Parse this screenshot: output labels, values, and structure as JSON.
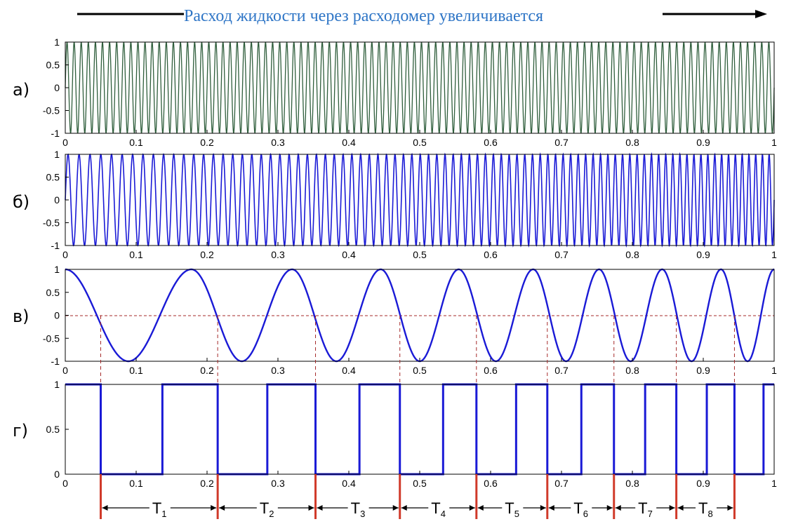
{
  "header": {
    "title": "Расход жидкости через расходомер увеличивается",
    "title_color": "#2e75c6"
  },
  "chart_data": [
    {
      "type": "line",
      "panel_label": "а)",
      "color": "#2f5e3c",
      "signal": "constant-frequency oscillation, amplitude 1",
      "cycles": 100,
      "xlim": [
        0,
        1
      ],
      "ylim": [
        -1,
        1
      ],
      "xticks": [
        "0",
        "0.1",
        "0.2",
        "0.3",
        "0.4",
        "0.5",
        "0.6",
        "0.7",
        "0.8",
        "0.9",
        "1"
      ],
      "yticks": [
        "1",
        "0.5",
        "0",
        "-0.5",
        "-1"
      ]
    },
    {
      "type": "line",
      "panel_label": "б)",
      "color": "#1a1ad6",
      "signal": "oscillation with rising frequency, amplitude 1",
      "cycles": 85,
      "xlim": [
        0,
        1
      ],
      "ylim": [
        -1,
        1
      ],
      "xticks": [
        "0",
        "0.1",
        "0.2",
        "0.3",
        "0.4",
        "0.5",
        "0.6",
        "0.7",
        "0.8",
        "0.9",
        "1"
      ],
      "yticks": [
        "1",
        "0.5",
        "0",
        "-0.5",
        "-1"
      ]
    },
    {
      "type": "line",
      "panel_label": "в)",
      "color": "#1a1ad6",
      "signal": "cosine with rising frequency",
      "peaks_x": [
        0,
        0.178,
        0.32,
        0.445,
        0.555,
        0.66,
        0.753,
        0.842,
        0.925,
        1.0
      ],
      "xlim": [
        0,
        1
      ],
      "ylim": [
        -1,
        1
      ],
      "xticks": [
        "0",
        "0.1",
        "0.2",
        "0.3",
        "0.4",
        "0.5",
        "0.6",
        "0.7",
        "0.8",
        "0.9",
        "1"
      ],
      "yticks": [
        "1",
        "0.5",
        "0",
        "-0.5",
        "-1"
      ]
    },
    {
      "type": "line",
      "panel_label": "г)",
      "color": "#1a1ad6",
      "signal": "square pulse train derived from в)",
      "falling_edges": [
        0.05,
        0.215,
        0.353,
        0.472,
        0.58,
        0.68,
        0.774,
        0.862,
        0.944
      ],
      "rising_edges": [
        0.137,
        0.285,
        0.415,
        0.533,
        0.636,
        0.728,
        0.818,
        0.905,
        0.985
      ],
      "periods": [
        {
          "label": "T",
          "sub": "1"
        },
        {
          "label": "T",
          "sub": "2"
        },
        {
          "label": "T",
          "sub": "3"
        },
        {
          "label": "T",
          "sub": "4"
        },
        {
          "label": "T",
          "sub": "5"
        },
        {
          "label": "T",
          "sub": "6"
        },
        {
          "label": "T",
          "sub": "7"
        },
        {
          "label": "T",
          "sub": "8"
        }
      ],
      "xlim": [
        0,
        1
      ],
      "ylim": [
        0,
        1
      ],
      "xticks": [
        "0",
        "0.1",
        "0.2",
        "0.3",
        "0.4",
        "0.5",
        "0.6",
        "0.7",
        "0.8",
        "0.9",
        "1"
      ],
      "yticks": [
        "1",
        "0.5",
        "0"
      ]
    }
  ]
}
